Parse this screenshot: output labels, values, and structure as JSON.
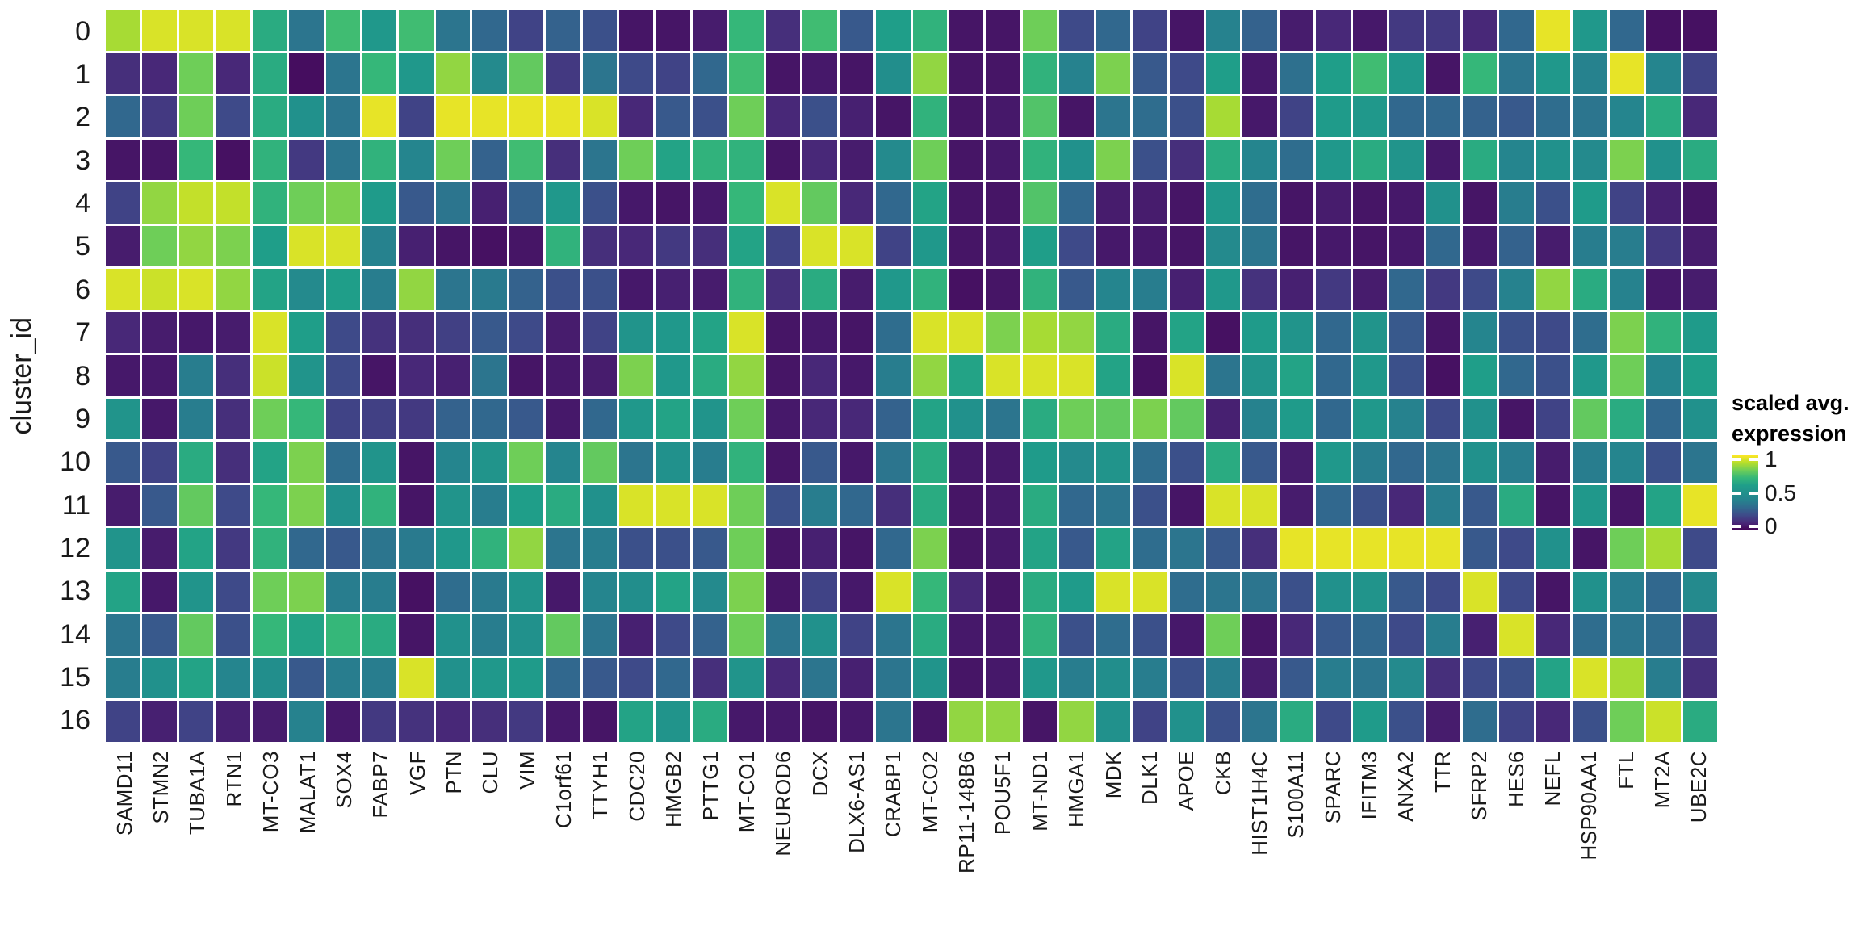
{
  "chart_data": {
    "type": "heatmap",
    "title": "",
    "xlabel": "",
    "ylabel": "cluster_id",
    "grid": false,
    "legend_position": "right",
    "rows": [
      "0",
      "1",
      "2",
      "3",
      "4",
      "5",
      "6",
      "7",
      "8",
      "9",
      "10",
      "11",
      "12",
      "13",
      "14",
      "15",
      "16"
    ],
    "columns": [
      "SAMD11",
      "STMN2",
      "TUBA1A",
      "RTN1",
      "MT-CO3",
      "MALAT1",
      "SOX4",
      "FABP7",
      "VGF",
      "PTN",
      "CLU",
      "VIM",
      "C1orf61",
      "TTYH1",
      "CDC20",
      "HMGB2",
      "PTTG1",
      "MT-CO1",
      "NEUROD6",
      "DCX",
      "DLX6-AS1",
      "CRABP1",
      "MT-CO2",
      "RP11-148B6",
      "POU5F1",
      "MT-ND1",
      "HMGA1",
      "MDK",
      "DLK1",
      "APOE",
      "CKB",
      "HIST1H4C",
      "S100A11",
      "SPARC",
      "IFITM3",
      "ANXA2",
      "TTR",
      "SFRP2",
      "HES6",
      "NEFL",
      "HSP90AA1",
      "FTL",
      "MT2A",
      "UBE2C"
    ],
    "values": [
      [
        0.88,
        0.95,
        0.95,
        0.95,
        0.65,
        0.35,
        0.72,
        0.55,
        0.72,
        0.35,
        0.3,
        0.18,
        0.28,
        0.22,
        0.05,
        0.05,
        0.07,
        0.7,
        0.12,
        0.72,
        0.25,
        0.6,
        0.68,
        0.05,
        0.05,
        0.8,
        0.2,
        0.3,
        0.18,
        0.05,
        0.4,
        0.28,
        0.07,
        0.1,
        0.06,
        0.15,
        0.15,
        0.1,
        0.3,
        0.97,
        0.55,
        0.3,
        0.04,
        0.04
      ],
      [
        0.12,
        0.1,
        0.8,
        0.1,
        0.65,
        0.03,
        0.35,
        0.7,
        0.55,
        0.85,
        0.45,
        0.78,
        0.15,
        0.35,
        0.2,
        0.18,
        0.3,
        0.72,
        0.05,
        0.06,
        0.05,
        0.48,
        0.85,
        0.05,
        0.05,
        0.68,
        0.4,
        0.82,
        0.25,
        0.2,
        0.6,
        0.06,
        0.33,
        0.6,
        0.72,
        0.55,
        0.05,
        0.7,
        0.35,
        0.55,
        0.4,
        0.97,
        0.42,
        0.18
      ],
      [
        0.3,
        0.15,
        0.8,
        0.2,
        0.65,
        0.5,
        0.35,
        0.97,
        0.18,
        0.97,
        0.97,
        0.97,
        0.97,
        0.95,
        0.1,
        0.25,
        0.22,
        0.8,
        0.1,
        0.22,
        0.08,
        0.05,
        0.68,
        0.05,
        0.06,
        0.75,
        0.05,
        0.35,
        0.32,
        0.22,
        0.88,
        0.06,
        0.18,
        0.58,
        0.55,
        0.3,
        0.3,
        0.28,
        0.25,
        0.32,
        0.35,
        0.42,
        0.65,
        0.1
      ],
      [
        0.05,
        0.05,
        0.7,
        0.04,
        0.68,
        0.15,
        0.35,
        0.68,
        0.42,
        0.8,
        0.28,
        0.72,
        0.12,
        0.35,
        0.8,
        0.62,
        0.68,
        0.68,
        0.05,
        0.1,
        0.07,
        0.45,
        0.8,
        0.05,
        0.06,
        0.68,
        0.5,
        0.82,
        0.22,
        0.12,
        0.65,
        0.42,
        0.32,
        0.55,
        0.65,
        0.52,
        0.06,
        0.65,
        0.42,
        0.5,
        0.45,
        0.82,
        0.5,
        0.65
      ],
      [
        0.18,
        0.85,
        0.92,
        0.92,
        0.68,
        0.8,
        0.82,
        0.58,
        0.25,
        0.35,
        0.08,
        0.28,
        0.55,
        0.22,
        0.06,
        0.05,
        0.06,
        0.7,
        0.95,
        0.78,
        0.1,
        0.3,
        0.62,
        0.05,
        0.05,
        0.75,
        0.3,
        0.07,
        0.07,
        0.05,
        0.55,
        0.32,
        0.05,
        0.07,
        0.05,
        0.06,
        0.5,
        0.05,
        0.38,
        0.22,
        0.58,
        0.18,
        0.08,
        0.05
      ],
      [
        0.07,
        0.8,
        0.85,
        0.82,
        0.6,
        0.95,
        0.95,
        0.4,
        0.08,
        0.05,
        0.04,
        0.05,
        0.68,
        0.12,
        0.1,
        0.15,
        0.12,
        0.62,
        0.18,
        0.95,
        0.95,
        0.18,
        0.55,
        0.05,
        0.06,
        0.6,
        0.2,
        0.06,
        0.06,
        0.05,
        0.45,
        0.35,
        0.05,
        0.06,
        0.05,
        0.06,
        0.3,
        0.06,
        0.28,
        0.07,
        0.38,
        0.38,
        0.15,
        0.07
      ],
      [
        0.95,
        0.93,
        0.95,
        0.85,
        0.62,
        0.45,
        0.6,
        0.38,
        0.85,
        0.35,
        0.37,
        0.28,
        0.22,
        0.22,
        0.06,
        0.08,
        0.07,
        0.68,
        0.12,
        0.65,
        0.07,
        0.55,
        0.68,
        0.04,
        0.05,
        0.68,
        0.25,
        0.42,
        0.38,
        0.08,
        0.55,
        0.13,
        0.08,
        0.15,
        0.07,
        0.3,
        0.15,
        0.2,
        0.4,
        0.85,
        0.65,
        0.4,
        0.06,
        0.07
      ],
      [
        0.1,
        0.07,
        0.06,
        0.07,
        0.95,
        0.6,
        0.2,
        0.13,
        0.12,
        0.17,
        0.25,
        0.2,
        0.07,
        0.18,
        0.52,
        0.55,
        0.62,
        0.95,
        0.05,
        0.06,
        0.05,
        0.32,
        0.95,
        0.95,
        0.82,
        0.88,
        0.85,
        0.65,
        0.05,
        0.62,
        0.04,
        0.58,
        0.52,
        0.3,
        0.52,
        0.25,
        0.05,
        0.42,
        0.22,
        0.2,
        0.32,
        0.82,
        0.68,
        0.58
      ],
      [
        0.06,
        0.06,
        0.38,
        0.12,
        0.93,
        0.52,
        0.2,
        0.05,
        0.1,
        0.08,
        0.35,
        0.05,
        0.06,
        0.07,
        0.82,
        0.55,
        0.65,
        0.85,
        0.05,
        0.1,
        0.06,
        0.38,
        0.85,
        0.62,
        0.95,
        0.95,
        0.95,
        0.62,
        0.04,
        0.95,
        0.35,
        0.52,
        0.62,
        0.3,
        0.55,
        0.22,
        0.04,
        0.6,
        0.3,
        0.22,
        0.55,
        0.8,
        0.42,
        0.6
      ],
      [
        0.52,
        0.06,
        0.38,
        0.12,
        0.8,
        0.7,
        0.18,
        0.17,
        0.15,
        0.28,
        0.3,
        0.25,
        0.06,
        0.3,
        0.55,
        0.62,
        0.52,
        0.8,
        0.06,
        0.1,
        0.1,
        0.28,
        0.62,
        0.5,
        0.35,
        0.65,
        0.8,
        0.78,
        0.82,
        0.78,
        0.08,
        0.4,
        0.58,
        0.3,
        0.55,
        0.4,
        0.2,
        0.5,
        0.05,
        0.18,
        0.78,
        0.65,
        0.3,
        0.5
      ],
      [
        0.25,
        0.18,
        0.65,
        0.12,
        0.62,
        0.82,
        0.32,
        0.52,
        0.05,
        0.42,
        0.52,
        0.8,
        0.42,
        0.78,
        0.35,
        0.5,
        0.38,
        0.68,
        0.05,
        0.25,
        0.06,
        0.35,
        0.65,
        0.06,
        0.06,
        0.58,
        0.45,
        0.52,
        0.32,
        0.22,
        0.65,
        0.25,
        0.07,
        0.55,
        0.38,
        0.3,
        0.35,
        0.5,
        0.38,
        0.07,
        0.38,
        0.42,
        0.22,
        0.35
      ],
      [
        0.07,
        0.25,
        0.78,
        0.2,
        0.7,
        0.82,
        0.5,
        0.68,
        0.05,
        0.52,
        0.38,
        0.6,
        0.65,
        0.5,
        0.95,
        0.95,
        0.95,
        0.8,
        0.22,
        0.38,
        0.3,
        0.12,
        0.65,
        0.05,
        0.06,
        0.65,
        0.3,
        0.35,
        0.22,
        0.05,
        0.95,
        0.95,
        0.07,
        0.3,
        0.22,
        0.1,
        0.38,
        0.25,
        0.65,
        0.05,
        0.55,
        0.05,
        0.62,
        0.97
      ],
      [
        0.52,
        0.07,
        0.62,
        0.15,
        0.68,
        0.3,
        0.25,
        0.35,
        0.37,
        0.55,
        0.68,
        0.85,
        0.35,
        0.38,
        0.22,
        0.22,
        0.25,
        0.8,
        0.05,
        0.08,
        0.05,
        0.3,
        0.82,
        0.05,
        0.06,
        0.62,
        0.25,
        0.62,
        0.32,
        0.35,
        0.25,
        0.12,
        0.97,
        0.97,
        0.97,
        0.97,
        0.97,
        0.25,
        0.2,
        0.5,
        0.05,
        0.8,
        0.88,
        0.2
      ],
      [
        0.62,
        0.06,
        0.52,
        0.2,
        0.8,
        0.82,
        0.38,
        0.38,
        0.04,
        0.32,
        0.37,
        0.52,
        0.06,
        0.42,
        0.48,
        0.62,
        0.45,
        0.82,
        0.05,
        0.18,
        0.06,
        0.95,
        0.7,
        0.1,
        0.05,
        0.65,
        0.58,
        0.95,
        0.95,
        0.32,
        0.35,
        0.35,
        0.22,
        0.5,
        0.52,
        0.25,
        0.2,
        0.95,
        0.2,
        0.05,
        0.5,
        0.38,
        0.3,
        0.45
      ],
      [
        0.35,
        0.25,
        0.78,
        0.22,
        0.7,
        0.62,
        0.7,
        0.65,
        0.05,
        0.5,
        0.38,
        0.5,
        0.78,
        0.35,
        0.08,
        0.2,
        0.28,
        0.8,
        0.35,
        0.5,
        0.18,
        0.35,
        0.65,
        0.06,
        0.06,
        0.68,
        0.22,
        0.32,
        0.22,
        0.06,
        0.8,
        0.05,
        0.1,
        0.25,
        0.3,
        0.2,
        0.38,
        0.08,
        0.95,
        0.1,
        0.32,
        0.35,
        0.32,
        0.15
      ],
      [
        0.38,
        0.5,
        0.62,
        0.42,
        0.48,
        0.25,
        0.38,
        0.38,
        0.95,
        0.5,
        0.55,
        0.58,
        0.3,
        0.25,
        0.2,
        0.3,
        0.12,
        0.52,
        0.1,
        0.35,
        0.08,
        0.35,
        0.52,
        0.05,
        0.06,
        0.55,
        0.38,
        0.48,
        0.38,
        0.22,
        0.38,
        0.07,
        0.25,
        0.38,
        0.35,
        0.45,
        0.12,
        0.2,
        0.22,
        0.62,
        0.95,
        0.88,
        0.38,
        0.12
      ],
      [
        0.18,
        0.08,
        0.18,
        0.08,
        0.07,
        0.4,
        0.06,
        0.15,
        0.13,
        0.1,
        0.12,
        0.15,
        0.06,
        0.05,
        0.62,
        0.52,
        0.65,
        0.06,
        0.06,
        0.05,
        0.06,
        0.35,
        0.05,
        0.85,
        0.85,
        0.05,
        0.85,
        0.5,
        0.18,
        0.5,
        0.22,
        0.35,
        0.65,
        0.2,
        0.58,
        0.22,
        0.07,
        0.32,
        0.18,
        0.1,
        0.22,
        0.8,
        0.93,
        0.65
      ]
    ],
    "colormap": "viridis",
    "colormap_stops": [
      "#440154",
      "#482878",
      "#3e4a89",
      "#31688e",
      "#26828e",
      "#21918c",
      "#1f9e89",
      "#35b779",
      "#6ece58",
      "#b5de2b",
      "#fde725"
    ],
    "value_range": [
      0,
      1
    ],
    "legend": {
      "title_lines": [
        "scaled avg.",
        "expression"
      ],
      "ticks": [
        {
          "label": "1",
          "value": 1
        },
        {
          "label": "0.5",
          "value": 0.5
        },
        {
          "label": "0",
          "value": 0
        }
      ]
    }
  }
}
